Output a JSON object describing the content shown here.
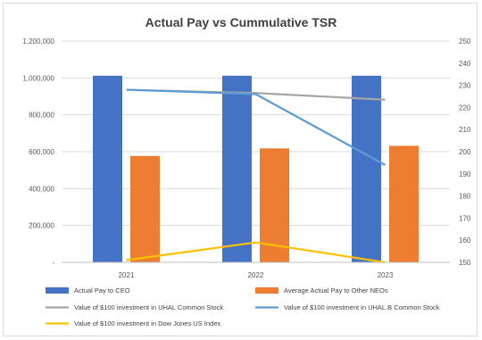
{
  "chart_data": {
    "type": "bar",
    "title": "Actual Pay vs Cummulative TSR",
    "categories": [
      "2021",
      "2022",
      "2023"
    ],
    "y_left": {
      "ticks": [
        "-",
        "200,000",
        "400,000",
        "600,000",
        "800,000",
        "1,000,000",
        "1,200,000"
      ],
      "min": 0,
      "max": 1200000,
      "step": 200000
    },
    "y_right": {
      "ticks": [
        "150",
        "160",
        "170",
        "180",
        "190",
        "200",
        "210",
        "220",
        "230",
        "240",
        "250"
      ],
      "min": 150,
      "max": 250,
      "step": 10
    },
    "grid": true,
    "legend_position": "bottom",
    "bar_series": [
      {
        "name": "Actual Pay to CEO",
        "color": "#4472c4",
        "values": [
          1012000,
          1012000,
          1012000
        ]
      },
      {
        "name": "Average Actual Pay to Other NEOs",
        "color": "#ed7d31",
        "values": [
          577000,
          618000,
          632000
        ]
      }
    ],
    "line_series": [
      {
        "name": "Value of $100 investment in UHAL Common Stock",
        "color": "#a5a5a5",
        "values": [
          228,
          226.5,
          223.5
        ]
      },
      {
        "name": "Value of $100 investment in UHAL.B Common Stock",
        "color": "#5b9bd5",
        "values": [
          228,
          226,
          194
        ]
      },
      {
        "name": "Value of $100 investment in Dow Jones US Index",
        "color": "#ffc000",
        "values": [
          151,
          159,
          150
        ]
      }
    ]
  }
}
